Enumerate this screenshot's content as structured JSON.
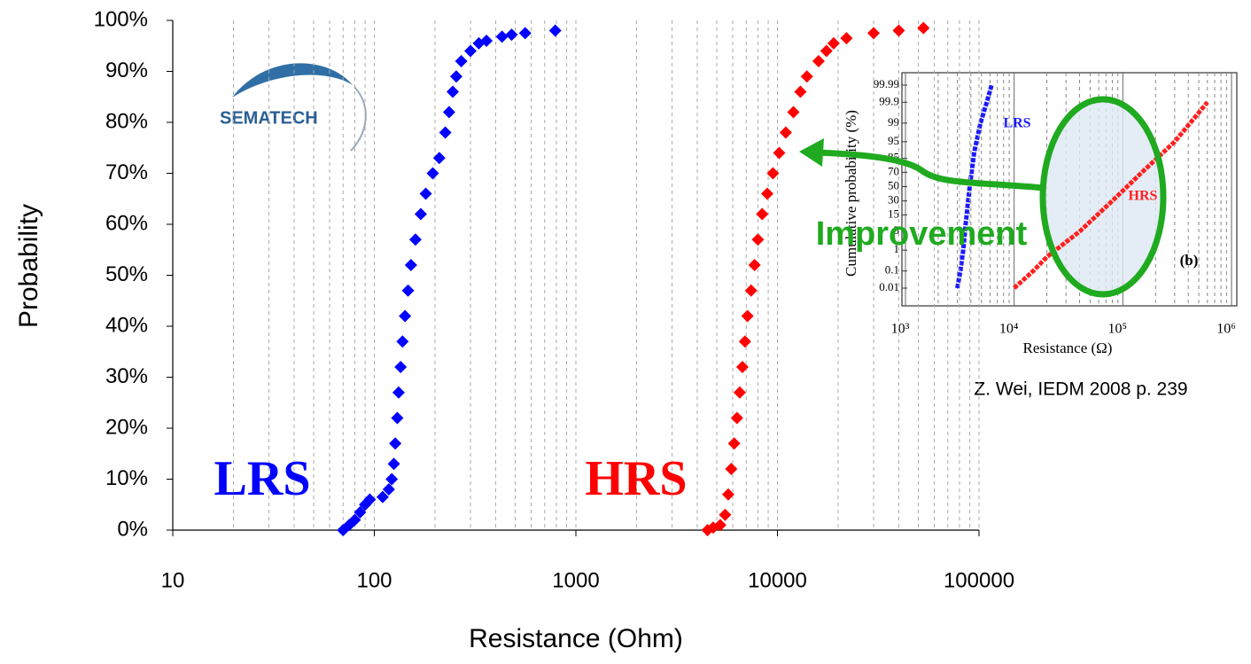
{
  "logo": "SEMATECH",
  "chart_data": [
    {
      "type": "scatter",
      "xscale": "log",
      "xlabel": "Resistance (Ohm)",
      "ylabel": "Probability",
      "xlim": [
        10,
        100000
      ],
      "xticks": [
        10,
        100,
        1000,
        10000,
        100000
      ],
      "ylim": [
        0,
        100
      ],
      "yticks": [
        {
          "value": 0,
          "label": "0%"
        },
        {
          "value": 10,
          "label": "10%"
        },
        {
          "value": 20,
          "label": "20%"
        },
        {
          "value": 30,
          "label": "30%"
        },
        {
          "value": 40,
          "label": "40%"
        },
        {
          "value": 50,
          "label": "50%"
        },
        {
          "value": 60,
          "label": "60%"
        },
        {
          "value": 70,
          "label": "70%"
        },
        {
          "value": 80,
          "label": "80%"
        },
        {
          "value": 90,
          "label": "90%"
        },
        {
          "value": 100,
          "label": "100%"
        }
      ],
      "grid": true,
      "annotations": [
        "Improvement"
      ],
      "series": [
        {
          "name": "LRS",
          "color": "#0000ff",
          "x": [
            70,
            75,
            80,
            85,
            90,
            95,
            110,
            118,
            122,
            125,
            127,
            130,
            132,
            135,
            138,
            142,
            147,
            152,
            160,
            170,
            180,
            195,
            210,
            225,
            235,
            245,
            255,
            270,
            300,
            330,
            360,
            430,
            480,
            560,
            790
          ],
          "values": [
            0,
            1,
            2,
            3.5,
            5,
            6,
            6.5,
            8,
            10,
            13,
            17,
            22,
            27,
            32,
            37,
            42,
            47,
            52,
            57,
            62,
            66,
            70,
            73,
            78,
            82,
            86,
            89,
            92,
            94,
            95.5,
            96,
            96.8,
            97.2,
            97.5,
            98
          ]
        },
        {
          "name": "HRS",
          "color": "#ff0000",
          "x": [
            4500,
            4800,
            5200,
            5500,
            5700,
            5900,
            6100,
            6300,
            6500,
            6700,
            6900,
            7100,
            7400,
            7700,
            8000,
            8400,
            8900,
            9500,
            10200,
            11000,
            12000,
            13000,
            14000,
            16000,
            17500,
            19000,
            22000,
            30000,
            40000,
            53000
          ],
          "values": [
            0,
            0.5,
            1,
            3,
            7,
            12,
            17,
            22,
            27,
            32,
            37,
            42,
            47,
            52,
            57,
            62,
            66,
            70,
            74,
            78,
            82,
            86,
            89,
            92,
            94,
            95.5,
            96.5,
            97.5,
            98,
            98.5
          ]
        }
      ]
    },
    {
      "type": "line",
      "xscale": "log",
      "yscale": "probability",
      "xlabel": "Resistance (Ω)",
      "ylabel": "Cumulative probability (%)",
      "panel_label": "(b)",
      "source": "Z. Wei, IEDM 2008 p. 239",
      "xlim": [
        1000,
        1000000
      ],
      "xticks": [
        {
          "value": 1000,
          "label": "10³"
        },
        {
          "value": 10000,
          "label": "10⁴"
        },
        {
          "value": 100000,
          "label": "10⁵"
        },
        {
          "value": 1000000,
          "label": "10⁶"
        }
      ],
      "ylim": [
        0.01,
        99.99
      ],
      "yticks": [
        0.01,
        0.1,
        1,
        5,
        15,
        30,
        50,
        70,
        85,
        95,
        99,
        99.9,
        99.99
      ],
      "grid": true,
      "series": [
        {
          "name": "LRS",
          "color": "#1a1aff",
          "x": [
            3000,
            3200,
            3400,
            3600,
            3900,
            4300,
            4900,
            5600,
            6200
          ],
          "values": [
            0.01,
            0.1,
            1,
            10,
            50,
            90,
            99,
            99.9,
            99.99
          ]
        },
        {
          "name": "HRS",
          "color": "#ff2020",
          "x": [
            10000,
            15000,
            20000,
            40000,
            80000,
            150000,
            300000,
            600000
          ],
          "values": [
            0.01,
            0.1,
            0.5,
            5,
            30,
            70,
            95,
            99.9
          ]
        }
      ]
    }
  ]
}
